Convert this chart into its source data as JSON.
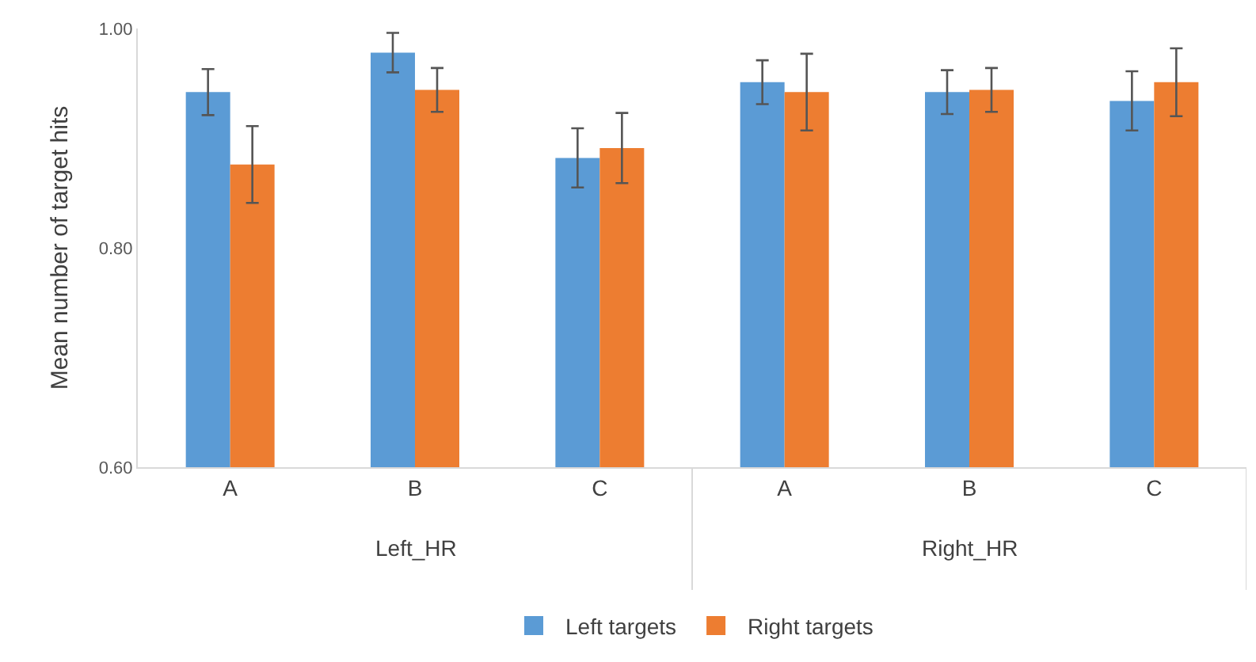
{
  "chart_data": {
    "type": "bar",
    "ylabel": "Mean number of target hits",
    "categories": [
      "A",
      "B",
      "C",
      "A",
      "B",
      "C"
    ],
    "series": [
      {
        "name": "Left targets",
        "color": "#5b9bd5",
        "values": [
          0.942,
          0.978,
          0.882,
          0.951,
          0.942,
          0.934
        ],
        "errors": [
          0.021,
          0.018,
          0.027,
          0.02,
          0.02,
          0.027
        ]
      },
      {
        "name": "Right targets",
        "color": "#ed7d31",
        "values": [
          0.876,
          0.944,
          0.891,
          0.942,
          0.944,
          0.951
        ],
        "errors": [
          0.035,
          0.02,
          0.032,
          0.035,
          0.02,
          0.031
        ]
      }
    ],
    "annotations": [
      "Left_HR",
      "Right_HR"
    ],
    "ylim": [
      0.6,
      1.0
    ],
    "yticks": [
      {
        "value": 0.6,
        "label": "0.60"
      },
      {
        "value": 0.8,
        "label": "0.80"
      },
      {
        "value": 1.0,
        "label": "1.00"
      }
    ],
    "legend": "bottom"
  }
}
